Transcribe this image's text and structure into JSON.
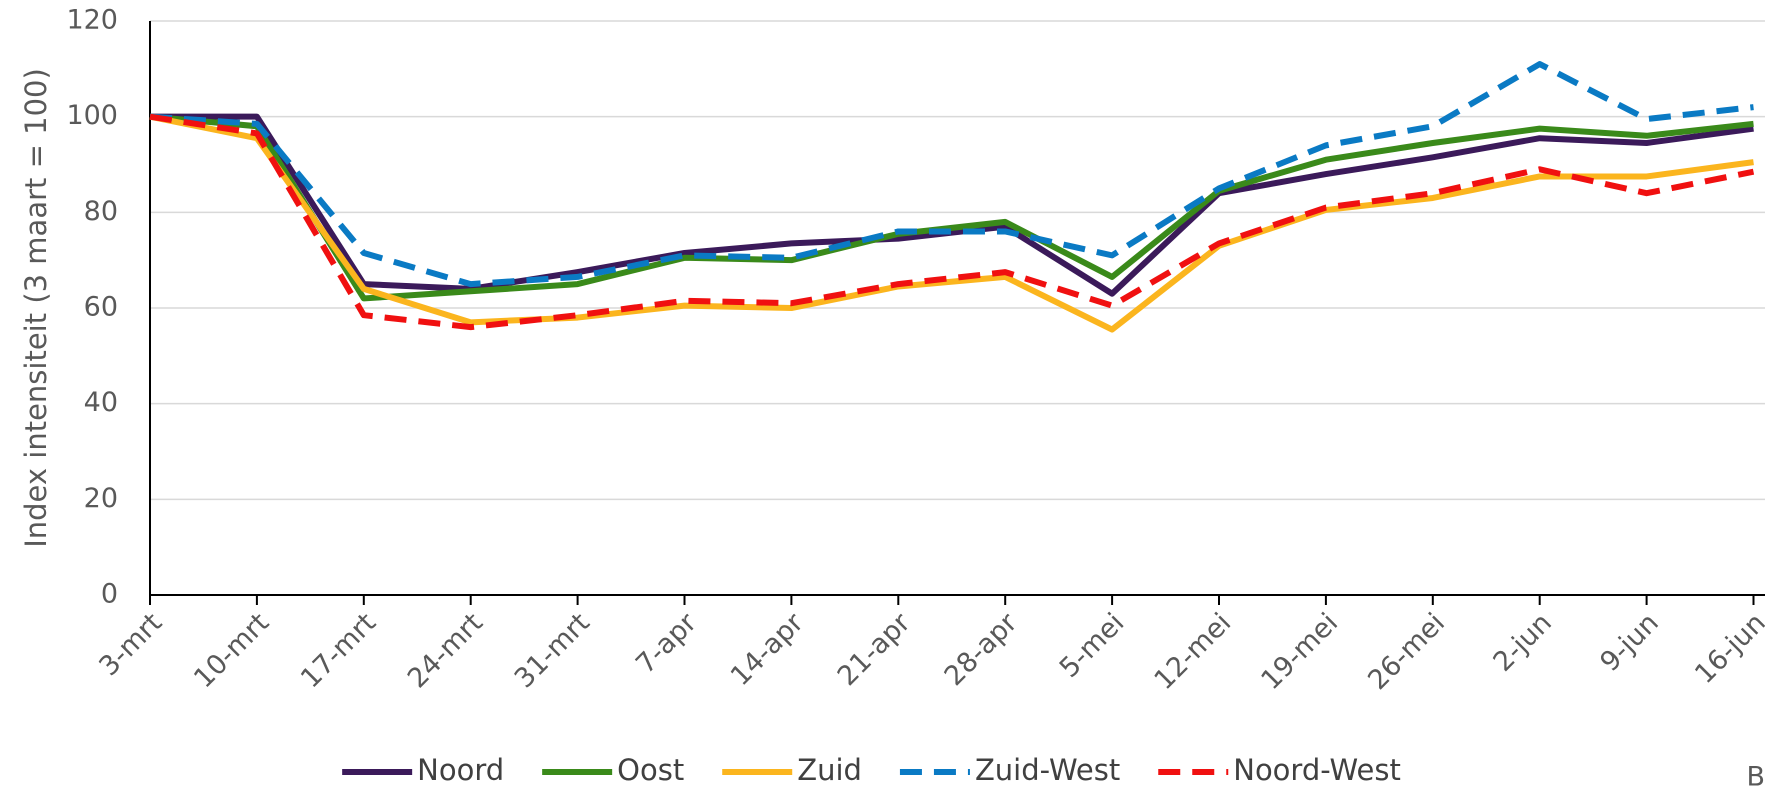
{
  "chart_data": {
    "type": "line",
    "ylabel": "Index intensiteit (3 maart = 100)",
    "note": "B",
    "categories": [
      "3-mrt",
      "10-mrt",
      "17-mrt",
      "24-mrt",
      "31-mrt",
      "7-apr",
      "14-apr",
      "21-apr",
      "28-apr",
      "5-mei",
      "12-mei",
      "19-mei",
      "26-mei",
      "2-jun",
      "9-jun",
      "16-jun"
    ],
    "series": [
      {
        "name": "Noord",
        "color": "#3b1a5a",
        "dash": "solid",
        "values": [
          100,
          100,
          65,
          64,
          67.5,
          71.5,
          73.5,
          74.5,
          77,
          63,
          84,
          88,
          91.5,
          95.5,
          94.5,
          97.5
        ]
      },
      {
        "name": "Oost",
        "color": "#3a8a1a",
        "dash": "solid",
        "values": [
          100,
          98,
          62,
          63.5,
          65,
          70.5,
          70,
          75.5,
          78,
          66.5,
          84.5,
          91,
          94.5,
          97.5,
          96,
          98.5
        ]
      },
      {
        "name": "Zuid",
        "color": "#fbb51e",
        "dash": "solid",
        "values": [
          100,
          95.5,
          64,
          57,
          58,
          60.5,
          60,
          64.5,
          66.5,
          55.5,
          73,
          80.5,
          83,
          87.5,
          87.5,
          90.5
        ]
      },
      {
        "name": "Zuid-West",
        "color": "#0a7ac4",
        "dash": "dashed",
        "values": [
          100,
          98.5,
          71.5,
          65,
          66.5,
          71,
          70.5,
          76,
          76,
          71,
          85,
          94,
          98,
          111,
          99.5,
          102
        ]
      },
      {
        "name": "Noord-West",
        "color": "#f01010",
        "dash": "dashed",
        "values": [
          100,
          96.5,
          58.5,
          56,
          58.5,
          61.5,
          61,
          65,
          67.5,
          60.5,
          73.5,
          81,
          84,
          89,
          84,
          88.5
        ]
      }
    ],
    "ylim": [
      0,
      120
    ],
    "yticks": [
      0,
      20,
      40,
      60,
      80,
      100,
      120
    ],
    "grid": true,
    "legend": "bottom"
  }
}
